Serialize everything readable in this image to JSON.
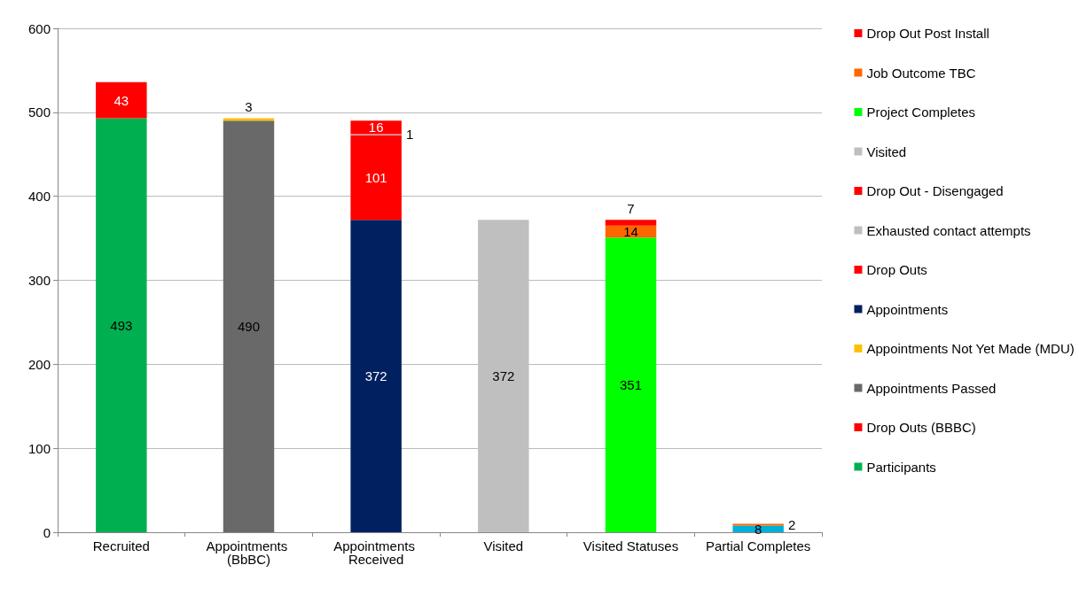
{
  "chart_data": {
    "type": "bar",
    "stacked": true,
    "data_labels": true,
    "grid": "y",
    "legend": "right",
    "categories": [
      "Recruited",
      "Appointments (BbBC)",
      "Appointments Received",
      "Visited",
      "Visited Statuses",
      "Partial Completes"
    ],
    "ylim": [
      0,
      600
    ],
    "yticks": [
      0,
      100,
      200,
      300,
      400,
      500,
      600
    ],
    "series": [
      {
        "name": "Participants",
        "color": "#00b050",
        "values": [
          493,
          null,
          null,
          null,
          null,
          null
        ]
      },
      {
        "name": "Drop Outs (BBBC)",
        "color": "#ff0000",
        "values": [
          43,
          null,
          null,
          null,
          null,
          null
        ]
      },
      {
        "name": "Appointments Passed",
        "color": "#696969",
        "values": [
          null,
          490,
          null,
          null,
          null,
          null
        ]
      },
      {
        "name": "Appointments Not Yet Made (MDU)",
        "color": "#ffc000",
        "values": [
          null,
          3,
          null,
          null,
          null,
          null
        ]
      },
      {
        "name": "Appointments",
        "color": "#002060",
        "values": [
          null,
          null,
          372,
          null,
          null,
          null
        ]
      },
      {
        "name": "Drop Outs",
        "color": "#ff0000",
        "values": [
          null,
          null,
          101,
          null,
          null,
          null
        ]
      },
      {
        "name": "Exhausted contact attempts",
        "color": "#bfbfbf",
        "values": [
          null,
          null,
          1,
          null,
          null,
          null
        ]
      },
      {
        "name": "Drop Out - Disengaged",
        "color": "#ff0000",
        "values": [
          null,
          null,
          16,
          null,
          null,
          null
        ]
      },
      {
        "name": "Visited",
        "color": "#bfbfbf",
        "values": [
          null,
          null,
          null,
          372,
          null,
          null
        ]
      },
      {
        "name": "Project Completes",
        "color": "#00ff00",
        "values": [
          null,
          null,
          null,
          null,
          351,
          null
        ]
      },
      {
        "name": "Job Outcome TBC",
        "color": "#ff6600",
        "values": [
          null,
          null,
          null,
          null,
          14,
          null
        ]
      },
      {
        "name": "Drop Out Post Install",
        "color": "#ff0000",
        "values": [
          null,
          null,
          null,
          null,
          7,
          null
        ]
      },
      {
        "color": "#00b0d8",
        "values": [
          null,
          null,
          null,
          null,
          null,
          8
        ]
      },
      {
        "color": "#ff6600",
        "values": [
          null,
          null,
          null,
          null,
          null,
          2
        ]
      }
    ]
  }
}
